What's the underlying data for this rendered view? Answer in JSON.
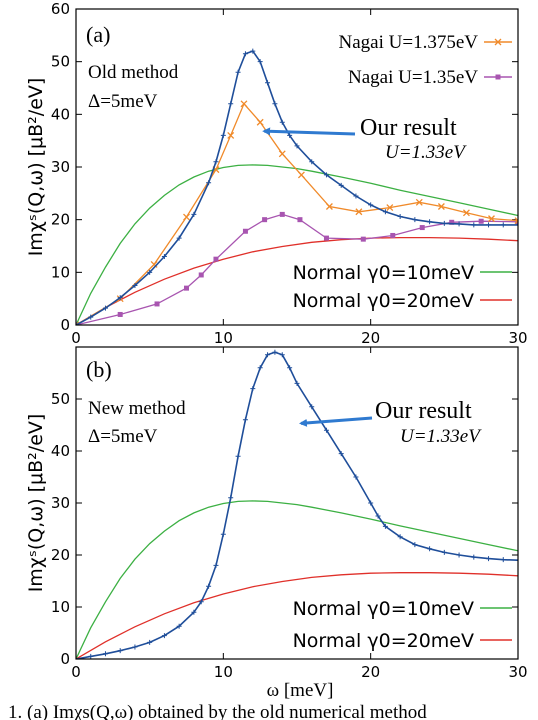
{
  "shared_xlabel": "ω [meV]",
  "caption_fragment": "1. (a) Imχs(Q,ω) obtained by the old numerical method",
  "colors": {
    "our": "#1f4e9a",
    "nagai1375": "#f08a2a",
    "nagai135": "#a855b0",
    "normal10": "#3cb043",
    "normal20": "#e0302a",
    "arrow": "#2f7ad0"
  },
  "chart_data": [
    {
      "type": "line",
      "panel_label": "(a)",
      "method_line1": "Old method",
      "method_line2": "Δ=5meV",
      "ylabel": "Imχˢ(Q,ω) [μB²/eV]",
      "xlim": [
        0,
        30
      ],
      "ylim": [
        0,
        60
      ],
      "xticks": [
        0,
        10,
        20,
        30
      ],
      "yticks": [
        0,
        10,
        20,
        30,
        40,
        50,
        60
      ],
      "annotation": {
        "line1": "Our result",
        "line2": "U=1.33eV",
        "point": [
          12.5,
          37
        ]
      },
      "legend_top": [
        {
          "series": "nagai1375",
          "label": "Nagai U=1.375eV"
        },
        {
          "series": "nagai135",
          "label": "Nagai U=1.35eV"
        }
      ],
      "legend_bottom": [
        {
          "series": "normal10",
          "label": "Normal γ0=10meV"
        },
        {
          "series": "normal20",
          "label": "Normal γ0=20meV"
        }
      ],
      "series": [
        {
          "key": "our",
          "marker": "plus",
          "x": [
            0,
            1,
            2,
            3,
            4,
            5,
            6,
            7,
            8,
            9,
            9.5,
            10,
            10.5,
            11,
            11.5,
            12,
            12.5,
            13,
            13.5,
            14,
            14.5,
            15,
            16,
            17,
            18,
            19,
            20,
            21,
            22,
            23,
            24,
            25,
            26,
            27,
            28,
            29,
            30
          ],
          "y": [
            0,
            1.5,
            3.2,
            5.2,
            7.5,
            10,
            13,
            16.5,
            21,
            27,
            31,
            36,
            42,
            48,
            51.5,
            52,
            50,
            46,
            42,
            38.5,
            36,
            34,
            31,
            28.5,
            26.5,
            24.5,
            22.8,
            21.5,
            20.6,
            20,
            19.6,
            19.3,
            19.2,
            19,
            19,
            19,
            19
          ]
        },
        {
          "key": "nagai1375",
          "marker": "x",
          "x": [
            0,
            3,
            5.3,
            7.5,
            9.5,
            10.5,
            11.4,
            12.5,
            14,
            15.3,
            17.2,
            19.2,
            21.3,
            23.3,
            24.8,
            26.5,
            28.2,
            30
          ],
          "y": [
            0,
            5,
            11.5,
            20.5,
            29.5,
            36,
            42,
            38.5,
            32.5,
            28.5,
            22.5,
            21.5,
            22.3,
            23.3,
            22.5,
            21.3,
            20.2,
            19.8
          ]
        },
        {
          "key": "nagai135",
          "marker": "square",
          "x": [
            0,
            3,
            5.5,
            7.5,
            8.5,
            9.5,
            11.5,
            12.8,
            14,
            15.2,
            17,
            19.5,
            21.5,
            23.5,
            25.5,
            27.5,
            30
          ],
          "y": [
            0,
            2,
            4,
            7,
            9.5,
            12.5,
            17.8,
            20,
            21,
            20,
            16.5,
            16.3,
            17,
            18.5,
            19.5,
            19.7,
            19.6
          ]
        },
        {
          "key": "normal10",
          "marker": "none",
          "x": [
            0,
            1,
            2,
            3,
            4,
            5,
            6,
            7,
            8,
            9,
            10,
            11,
            12,
            13,
            14,
            15,
            16,
            18,
            20,
            22,
            24,
            26,
            28,
            30
          ],
          "y": [
            0,
            6,
            11,
            15.5,
            19.2,
            22.2,
            24.6,
            26.6,
            28.1,
            29.2,
            29.9,
            30.3,
            30.4,
            30.3,
            30,
            29.7,
            29.2,
            28.1,
            26.9,
            25.6,
            24.4,
            23.2,
            22,
            20.8
          ]
        },
        {
          "key": "normal20",
          "marker": "none",
          "x": [
            0,
            2,
            4,
            6,
            8,
            10,
            12,
            14,
            16,
            18,
            20,
            22,
            24,
            26,
            28,
            30
          ],
          "y": [
            0,
            3.3,
            6.2,
            8.7,
            10.8,
            12.5,
            13.9,
            14.9,
            15.7,
            16.2,
            16.5,
            16.6,
            16.6,
            16.5,
            16.3,
            16
          ]
        }
      ]
    },
    {
      "type": "line",
      "panel_label": "(b)",
      "method_line1": "New method",
      "method_line2": "Δ=5meV",
      "ylabel": "Imχˢ(Q,ω) [μB²/eV]",
      "xlim": [
        0,
        30
      ],
      "ylim": [
        0,
        60
      ],
      "xticks": [
        0,
        10,
        20,
        30
      ],
      "yticks": [
        0,
        10,
        20,
        30,
        40,
        50
      ],
      "annotation": {
        "line1": "Our result",
        "line2": "U=1.33eV",
        "point": [
          15,
          45.5
        ]
      },
      "legend_top": [],
      "legend_bottom": [
        {
          "series": "normal10",
          "label": "Normal γ0=10meV"
        },
        {
          "series": "normal20",
          "label": "Normal γ0=20meV"
        }
      ],
      "series": [
        {
          "key": "our",
          "marker": "plus",
          "x": [
            0,
            1,
            2,
            3,
            4,
            5,
            6,
            7,
            8,
            8.5,
            9,
            9.5,
            10,
            10.5,
            11,
            11.5,
            12,
            12.5,
            13,
            13.5,
            14,
            14.5,
            15,
            16,
            17,
            18,
            19,
            20,
            20.5,
            21,
            22,
            23,
            24,
            25,
            26,
            27,
            28,
            29,
            30
          ],
          "y": [
            0,
            0.5,
            1,
            1.6,
            2.3,
            3.2,
            4.5,
            6.3,
            9,
            11,
            14,
            18,
            24,
            31,
            39,
            46,
            52,
            56,
            58.5,
            59,
            58.5,
            56,
            53,
            48.5,
            44,
            39.5,
            35,
            30,
            27.5,
            25.5,
            23.5,
            22,
            21.2,
            20.5,
            20,
            19.6,
            19.3,
            19.1,
            19
          ]
        },
        {
          "key": "normal10",
          "marker": "none",
          "x": [
            0,
            1,
            2,
            3,
            4,
            5,
            6,
            7,
            8,
            9,
            10,
            11,
            12,
            13,
            14,
            15,
            16,
            18,
            20,
            22,
            24,
            26,
            28,
            30
          ],
          "y": [
            0,
            6,
            11,
            15.5,
            19.2,
            22.2,
            24.6,
            26.6,
            28.1,
            29.2,
            29.9,
            30.3,
            30.4,
            30.3,
            30,
            29.7,
            29.2,
            28.1,
            26.9,
            25.6,
            24.4,
            23.2,
            22,
            20.8
          ]
        },
        {
          "key": "normal20",
          "marker": "none",
          "x": [
            0,
            2,
            4,
            6,
            8,
            10,
            12,
            14,
            16,
            18,
            20,
            22,
            24,
            26,
            28,
            30
          ],
          "y": [
            0,
            3.3,
            6.2,
            8.7,
            10.8,
            12.5,
            13.9,
            14.9,
            15.7,
            16.2,
            16.5,
            16.6,
            16.6,
            16.5,
            16.3,
            16
          ]
        }
      ]
    }
  ]
}
